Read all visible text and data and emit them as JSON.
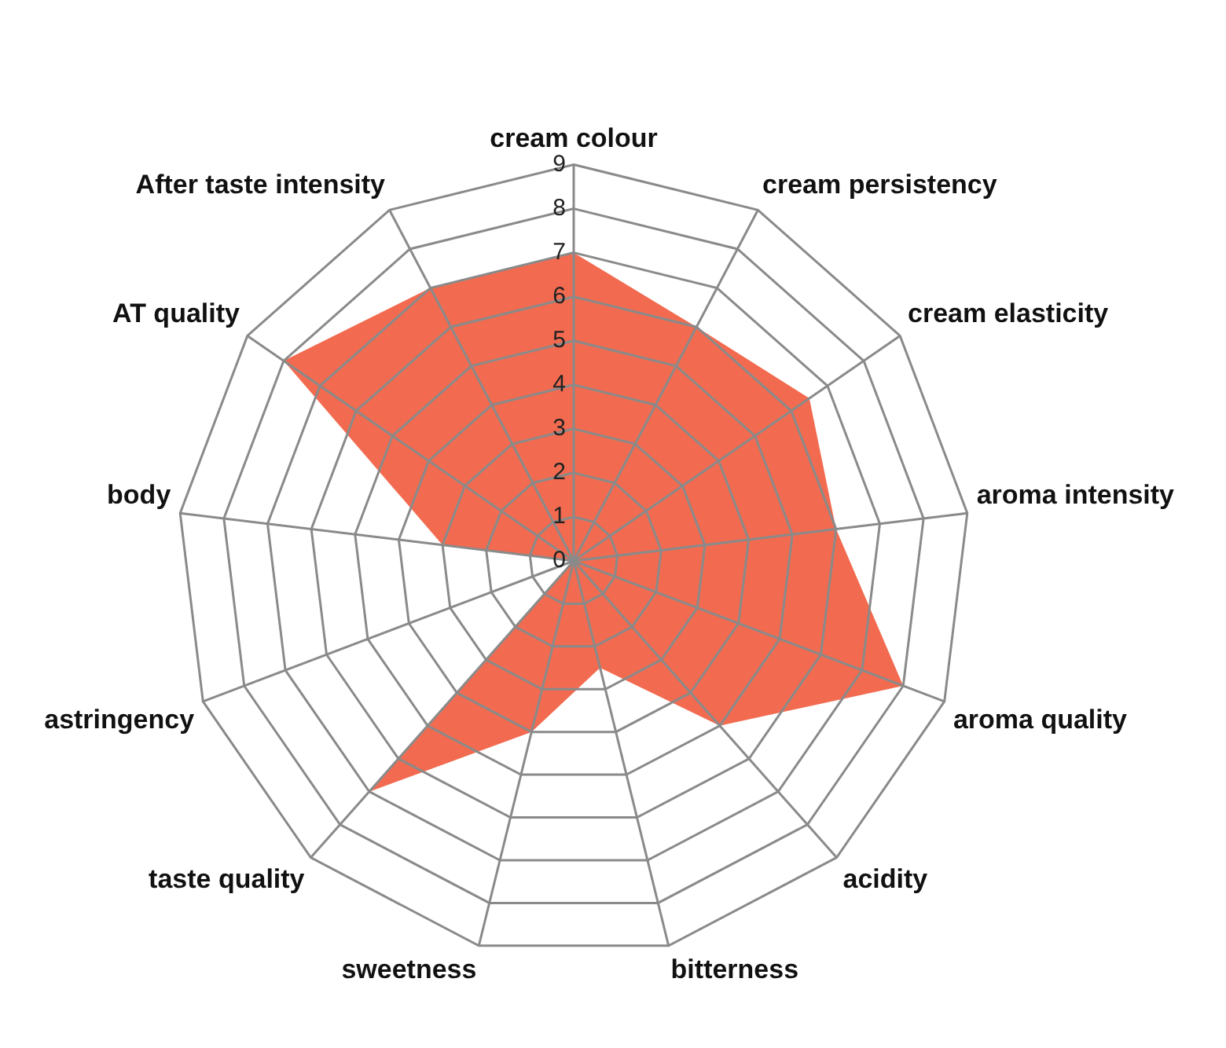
{
  "chart_data": {
    "type": "radar",
    "categories": [
      "cream colour",
      "cream persistency",
      "cream elasticity",
      "aroma intensity",
      "aroma quality",
      "acidity",
      "bitterness",
      "sweetness",
      "taste quality",
      "astringency",
      "body",
      "AT quality",
      "After taste intensity"
    ],
    "series": [
      {
        "color": "#f26b50",
        "values": [
          7,
          6,
          6.5,
          6,
          8,
          5,
          2.5,
          4,
          7,
          0,
          3,
          8,
          7
        ]
      }
    ],
    "ylim": [
      0,
      9
    ],
    "yticks": [
      0,
      1,
      2,
      3,
      4,
      5,
      6,
      7,
      8,
      9
    ],
    "grid": true,
    "legend": false
  }
}
